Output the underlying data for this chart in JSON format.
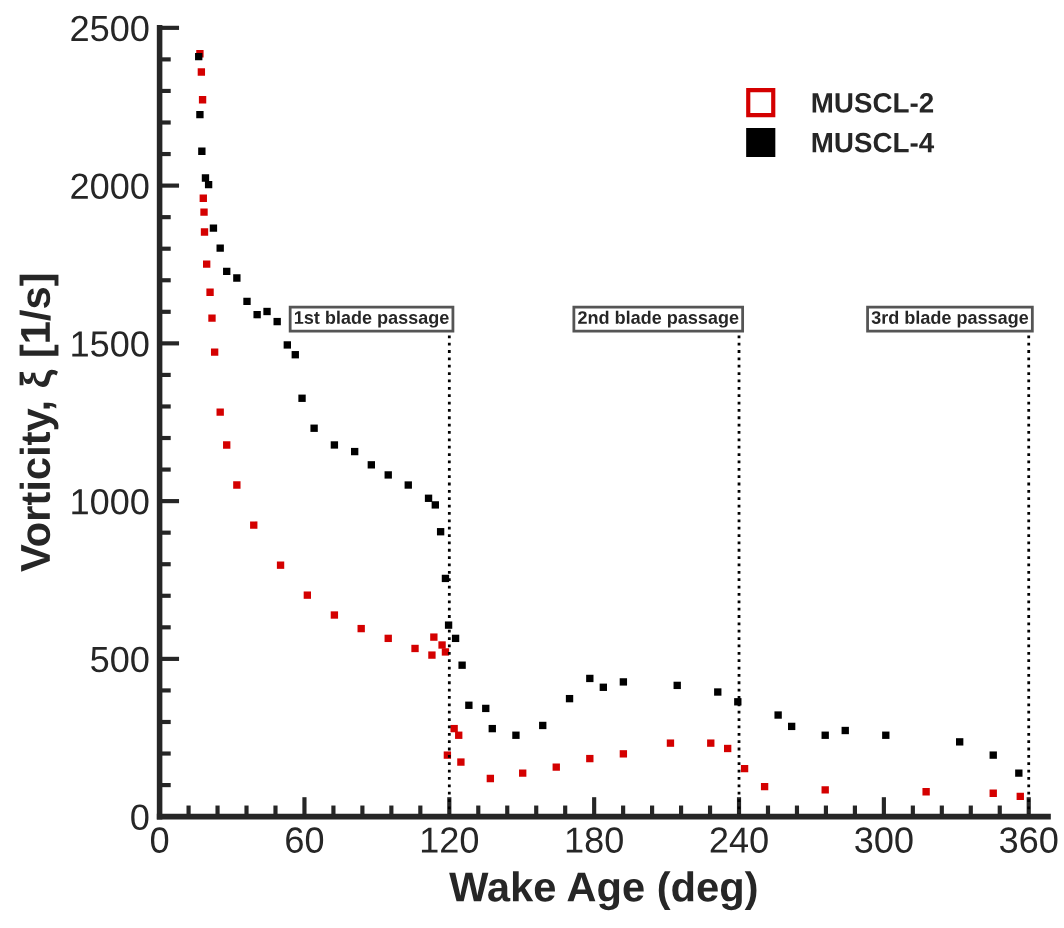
{
  "chart_data": {
    "type": "scatter",
    "xlabel": "Wake Age (deg)",
    "ylabel": "Vorticity, ξ [1/s]",
    "xlim": [
      0,
      368
    ],
    "ylim": [
      0,
      2500
    ],
    "xticks": [
      0,
      60,
      120,
      180,
      240,
      300,
      360
    ],
    "yticks": [
      0,
      500,
      1000,
      1500,
      2000,
      2500
    ],
    "marker": "square",
    "legend": "top right",
    "grid": false,
    "series": [
      {
        "name": "MUSCL-2",
        "color": "#d40000",
        "x": [
          16.7,
          17.3,
          17.8,
          18.1,
          18.4,
          18.6,
          19.5,
          20.9,
          21.7,
          22.8,
          25.1,
          27.8,
          32,
          39,
          50.1,
          61.2,
          72.4,
          83.5,
          94.7,
          105.8,
          112.8,
          113.6,
          117,
          118.4,
          119.2,
          122,
          123.9,
          124.8,
          137,
          150.4,
          164.3,
          178.2,
          192.1,
          211.6,
          228.3,
          235.3,
          242.3,
          250.6,
          275.7,
          317.5,
          345.3,
          356.5
        ],
        "values": [
          2418,
          2360,
          2272,
          1960,
          1916,
          1853,
          1751,
          1662,
          1580,
          1472,
          1282,
          1178,
          1051,
          924,
          797,
          702,
          639,
          596,
          565,
          533,
          512,
          569,
          544,
          522,
          195,
          279,
          258,
          173,
          121,
          138,
          157,
          184,
          199,
          233,
          233,
          216,
          152,
          95,
          85,
          79,
          74,
          64
        ]
      },
      {
        "name": "MUSCL-4",
        "color": "#000000",
        "x": [
          16.2,
          16.7,
          17.5,
          19,
          20.3,
          22.3,
          25.1,
          27.8,
          32,
          36.2,
          40.4,
          44.5,
          48.7,
          52.9,
          56.2,
          59,
          64,
          72.4,
          80.8,
          87.7,
          94.7,
          103,
          111.4,
          114.2,
          116.4,
          118.4,
          119.7,
          122.6,
          125.3,
          128.1,
          135.1,
          137.8,
          147.6,
          158.7,
          169.8,
          178.2,
          183.8,
          192.1,
          214.4,
          231.2,
          239.5,
          256.2,
          261.8,
          275.7,
          284,
          300.8,
          331.4,
          345.3,
          355.9
        ],
        "values": [
          2409,
          2225,
          2109,
          2024,
          2003,
          1865,
          1802,
          1728,
          1707,
          1633,
          1591,
          1601,
          1569,
          1495,
          1464,
          1326,
          1231,
          1178,
          1157,
          1115,
          1083,
          1051,
          1009,
          988,
          903,
          755,
          607,
          565,
          480,
          353,
          343,
          279,
          258,
          289,
          374,
          438,
          410,
          427,
          416,
          395,
          364,
          322,
          286,
          258,
          273,
          258,
          237,
          195,
          138
        ]
      }
    ],
    "ref_lines": [
      {
        "axis": "x",
        "value": 120,
        "label": "1st blade passage",
        "line_style": "dotted",
        "color": "#000000"
      },
      {
        "axis": "x",
        "value": 240,
        "label": "2nd blade passage",
        "line_style": "dotted",
        "color": "#000000"
      },
      {
        "axis": "x",
        "value": 360,
        "label": "3rd blade passage",
        "line_style": "dotted",
        "color": "#000000"
      }
    ]
  }
}
